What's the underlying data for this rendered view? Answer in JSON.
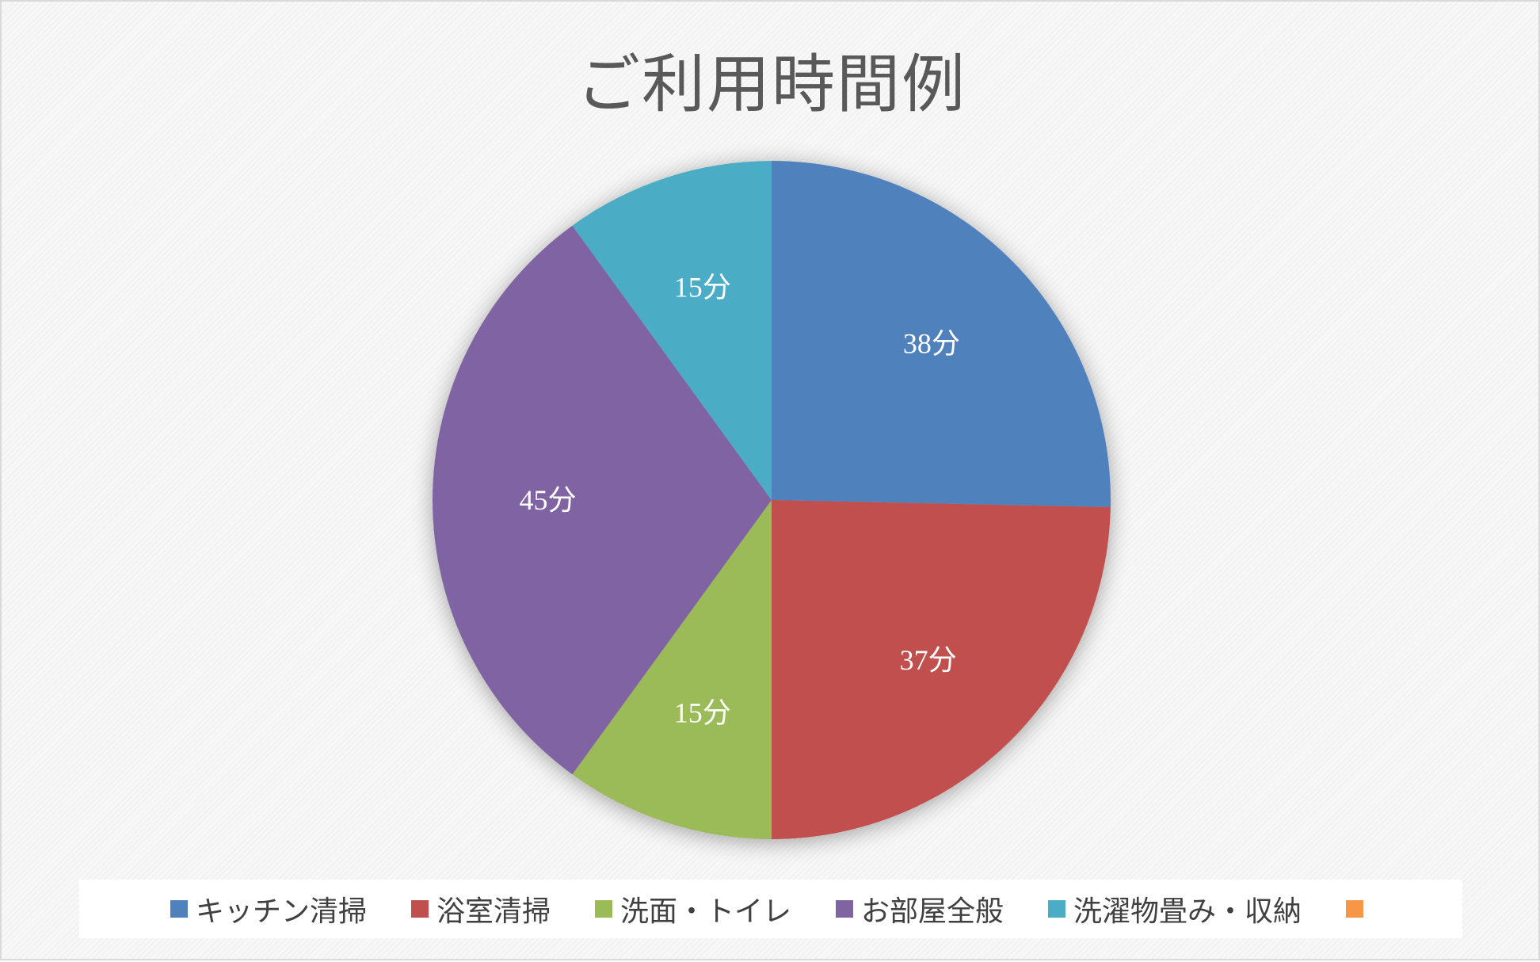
{
  "chart_data": {
    "type": "pie",
    "title": "ご利用時間例",
    "unit": "分",
    "start_angle_deg": 0,
    "direction": "clockwise",
    "slices": [
      {
        "label": "キッチン清掃",
        "value": 38,
        "display": "38分",
        "color": "#4f81bd"
      },
      {
        "label": "浴室清掃",
        "value": 37,
        "display": "37分",
        "color": "#c0504d"
      },
      {
        "label": "洗面・トイレ",
        "value": 15,
        "display": "15分",
        "color": "#9bbb59"
      },
      {
        "label": "お部屋全般",
        "value": 45,
        "display": "45分",
        "color": "#8064a2"
      },
      {
        "label": "洗濯物畳み・収納",
        "value": 15,
        "display": "15分",
        "color": "#4bacc6"
      },
      {
        "label": "",
        "value": 0,
        "display": "",
        "color": "#f79646"
      }
    ],
    "legend_position": "bottom"
  }
}
